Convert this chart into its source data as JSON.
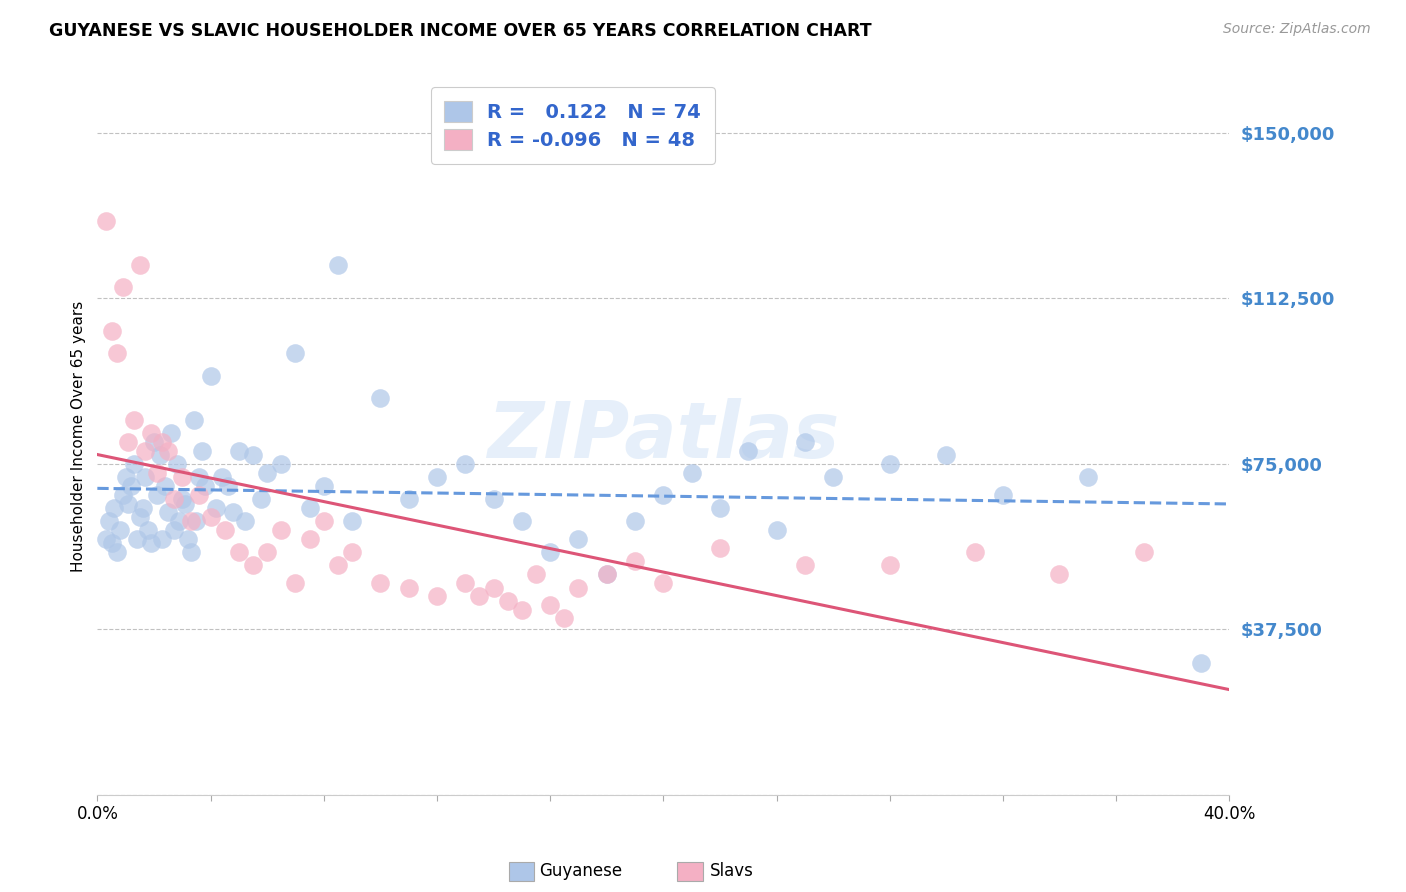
{
  "title": "GUYANESE VS SLAVIC HOUSEHOLDER INCOME OVER 65 YEARS CORRELATION CHART",
  "source": "Source: ZipAtlas.com",
  "ylabel": "Householder Income Over 65 years",
  "xlim": [
    0.0,
    0.4
  ],
  "ylim": [
    0,
    162500
  ],
  "yticks": [
    0,
    37500,
    75000,
    112500,
    150000
  ],
  "ytick_labels": [
    "",
    "$37,500",
    "$75,000",
    "$112,500",
    "$150,000"
  ],
  "xticks": [
    0.0,
    0.04,
    0.08,
    0.12,
    0.16,
    0.2,
    0.24,
    0.28,
    0.32,
    0.36,
    0.4
  ],
  "xtick_labels": [
    "0.0%",
    "",
    "",
    "",
    "",
    "",
    "",
    "",
    "",
    "",
    "40.0%"
  ],
  "r_blue": 0.122,
  "n_blue": 74,
  "r_pink": -0.096,
  "n_pink": 48,
  "blue_color": "#aec6e8",
  "pink_color": "#f4b0c4",
  "blue_line_color": "#6699dd",
  "pink_line_color": "#dd5577",
  "watermark": "ZIPatlas",
  "background_color": "#ffffff",
  "grid_color": "#bbbbbb",
  "blue_x": [
    0.003,
    0.004,
    0.005,
    0.006,
    0.007,
    0.008,
    0.009,
    0.01,
    0.011,
    0.012,
    0.013,
    0.014,
    0.015,
    0.016,
    0.017,
    0.018,
    0.019,
    0.02,
    0.021,
    0.022,
    0.023,
    0.024,
    0.025,
    0.026,
    0.027,
    0.028,
    0.029,
    0.03,
    0.031,
    0.032,
    0.033,
    0.034,
    0.035,
    0.036,
    0.037,
    0.038,
    0.04,
    0.042,
    0.044,
    0.046,
    0.048,
    0.05,
    0.052,
    0.055,
    0.058,
    0.06,
    0.065,
    0.07,
    0.075,
    0.08,
    0.085,
    0.09,
    0.1,
    0.11,
    0.12,
    0.13,
    0.14,
    0.15,
    0.16,
    0.17,
    0.18,
    0.19,
    0.2,
    0.21,
    0.22,
    0.23,
    0.24,
    0.25,
    0.26,
    0.28,
    0.3,
    0.32,
    0.35,
    0.39
  ],
  "blue_y": [
    58000,
    62000,
    57000,
    65000,
    55000,
    60000,
    68000,
    72000,
    66000,
    70000,
    75000,
    58000,
    63000,
    65000,
    72000,
    60000,
    57000,
    80000,
    68000,
    77000,
    58000,
    70000,
    64000,
    82000,
    60000,
    75000,
    62000,
    67000,
    66000,
    58000,
    55000,
    85000,
    62000,
    72000,
    78000,
    70000,
    95000,
    65000,
    72000,
    70000,
    64000,
    78000,
    62000,
    77000,
    67000,
    73000,
    75000,
    100000,
    65000,
    70000,
    120000,
    62000,
    90000,
    67000,
    72000,
    75000,
    67000,
    62000,
    55000,
    58000,
    50000,
    62000,
    68000,
    73000,
    65000,
    78000,
    60000,
    80000,
    72000,
    75000,
    77000,
    68000,
    72000,
    30000
  ],
  "pink_x": [
    0.003,
    0.005,
    0.007,
    0.009,
    0.011,
    0.013,
    0.015,
    0.017,
    0.019,
    0.021,
    0.023,
    0.025,
    0.027,
    0.03,
    0.033,
    0.036,
    0.04,
    0.045,
    0.05,
    0.055,
    0.06,
    0.065,
    0.07,
    0.075,
    0.08,
    0.085,
    0.09,
    0.1,
    0.11,
    0.12,
    0.13,
    0.135,
    0.14,
    0.145,
    0.15,
    0.155,
    0.16,
    0.165,
    0.17,
    0.18,
    0.19,
    0.2,
    0.22,
    0.25,
    0.28,
    0.31,
    0.34,
    0.37
  ],
  "pink_y": [
    130000,
    105000,
    100000,
    115000,
    80000,
    85000,
    120000,
    78000,
    82000,
    73000,
    80000,
    78000,
    67000,
    72000,
    62000,
    68000,
    63000,
    60000,
    55000,
    52000,
    55000,
    60000,
    48000,
    58000,
    62000,
    52000,
    55000,
    48000,
    47000,
    45000,
    48000,
    45000,
    47000,
    44000,
    42000,
    50000,
    43000,
    40000,
    47000,
    50000,
    53000,
    48000,
    56000,
    52000,
    52000,
    55000,
    50000,
    55000
  ]
}
